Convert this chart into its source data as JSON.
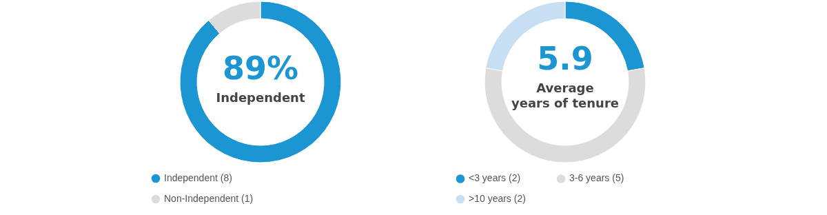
{
  "chart_data": [
    {
      "type": "donut",
      "categories": [
        "Independent (8)",
        "Non-Independent (1)"
      ],
      "values": [
        8,
        1
      ],
      "colors": [
        "#1b96d3",
        "#dcdcdc"
      ],
      "annotations": [
        "89%",
        "Independent"
      ],
      "legend": "bottom"
    },
    {
      "type": "donut",
      "categories": [
        "<3 years (2)",
        "3-6 years (5)",
        ">10 years (2)"
      ],
      "values": [
        2,
        5,
        2
      ],
      "colors": [
        "#1b96d3",
        "#dcdcdc",
        "#c6dff3"
      ],
      "annotations": [
        "5.9",
        "Average years of tenure"
      ],
      "legend": "bottom"
    }
  ]
}
